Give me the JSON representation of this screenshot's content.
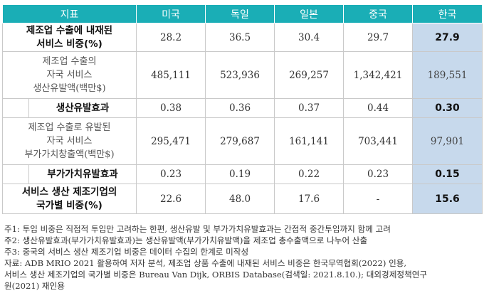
{
  "header": {
    "col0": "지표",
    "col1": "미국",
    "col2": "독일",
    "col3": "일본",
    "col4": "중국",
    "col5": "한국"
  },
  "rows": [
    {
      "label_lines": [
        "제조업 수출에 내재된",
        "서비스 비중(%)"
      ],
      "values": [
        "28.2",
        "36.5",
        "30.4",
        "29.7",
        "27.9"
      ]
    },
    {
      "label_lines": [
        "제조업 수출의",
        "자국 서비스",
        "생산유발액(백만$)"
      ],
      "values": [
        "485,111",
        "523,936",
        "269,257",
        "1,342,421",
        "189,551"
      ]
    },
    {
      "label_lines": [
        "생산유발효과"
      ],
      "values": [
        "0.38",
        "0.36",
        "0.37",
        "0.44",
        "0.30"
      ]
    },
    {
      "label_lines": [
        "제조업 수출로 유발된",
        "자국 서비스",
        "부가가치창출액(백만$)"
      ],
      "values": [
        "295,471",
        "279,687",
        "161,141",
        "703,441",
        "97,901"
      ]
    },
    {
      "label_lines": [
        "부가가치유발효과"
      ],
      "values": [
        "0.23",
        "0.19",
        "0.22",
        "0.23",
        "0.15"
      ]
    },
    {
      "label_lines": [
        "서비스 생산 제조기업의",
        "국가별 비중(%)"
      ],
      "values": [
        "22.6",
        "48.0",
        "17.6",
        "-",
        "15.6"
      ]
    }
  ],
  "notes": [
    "주1: 투입 비중은 직접적 투입만 고려하는 한편, 생산유발 및 부가가치유발효과는 간접적 중간투입까지 함께 고려",
    "주2: 생산유발효과(부가가치유발효과)는 생산유발액(부가가치유발액)을 제조업 총수출액으로 나누어 산출",
    "주3: 중국의 서비스 생산 제조기업 비중은 데이터 수집의 한계로 미작성",
    "자료: ADB MRIO 2021 활용하여 저자 분석, 제조업 상품 수출에 내재된 서비스 비중은 한국무역협회(2022) 인용,",
    "서비스 생산 제조기업의 국가별 비중은 Bureau Van Dijk, ORBIS Database(검색일: 2021.8.10.); 대외경제정책연구",
    "원(2021) 재인용"
  ],
  "colors": {
    "header_bg": "#1aaeb6",
    "highlight_bg": "#c7d9ec"
  }
}
